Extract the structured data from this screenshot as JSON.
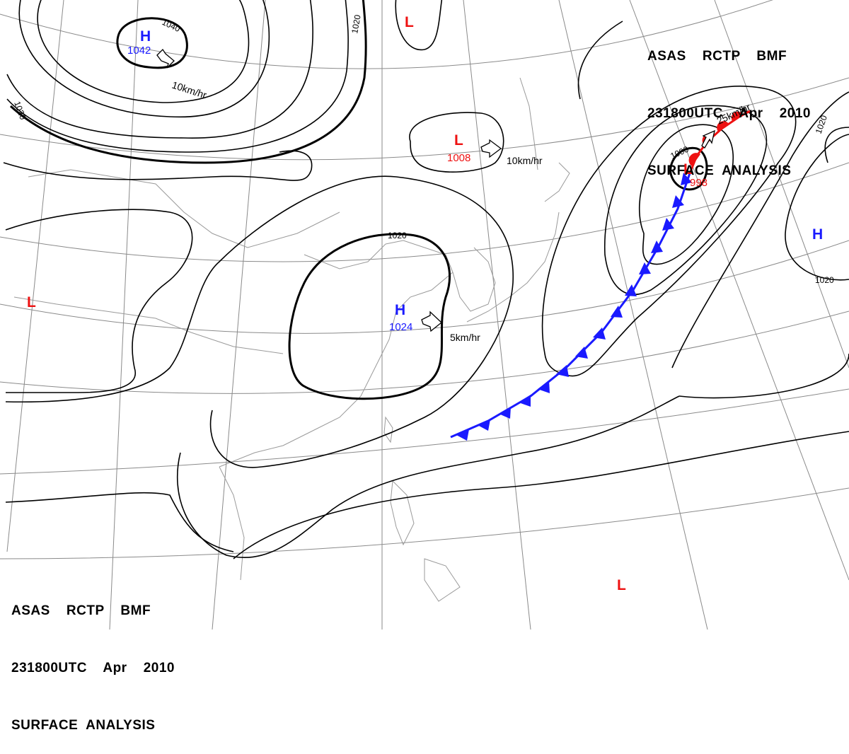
{
  "header_top_right": {
    "line1": "ASAS    RCTP    BMF",
    "line2": "231800UTC    Apr    2010",
    "line3": "SURFACE  ANALYSIS"
  },
  "header_bottom_left": {
    "line1": "ASAS    RCTP    BMF",
    "line2": "231800UTC    Apr    2010",
    "line3": "SURFACE  ANALYSIS"
  },
  "pressure_centers": [
    {
      "id": "h-northwest",
      "type": "H",
      "value": "1042",
      "color": "#1a1aff"
    },
    {
      "id": "h-china",
      "type": "H",
      "value": "1024",
      "color": "#1a1aff"
    },
    {
      "id": "h-east",
      "type": "H",
      "value": "",
      "color": "#1a1aff"
    },
    {
      "id": "l-north",
      "type": "L",
      "value": "",
      "color": "#ee1111"
    },
    {
      "id": "l-mongolia",
      "type": "L",
      "value": "1008",
      "color": "#ee1111"
    },
    {
      "id": "l-cyclone",
      "type": "L",
      "value": "998",
      "color": "#ee1111"
    },
    {
      "id": "l-west",
      "type": "L",
      "value": "",
      "color": "#ee1111"
    },
    {
      "id": "l-pacific",
      "type": "L",
      "value": "",
      "color": "#ee1111"
    }
  ],
  "isobar_labels": [
    "1040",
    "1020",
    "1020",
    "1020",
    "1020",
    "1000",
    "1020"
  ],
  "motion_vectors": [
    {
      "id": "motion-h-northwest",
      "speed": "10km/hr"
    },
    {
      "id": "motion-l-mongolia",
      "speed": "10km/hr"
    },
    {
      "id": "motion-h-china",
      "speed": "5km/hr"
    },
    {
      "id": "motion-l-cyclone",
      "speed": "25km/hr"
    }
  ],
  "fronts": [
    {
      "id": "cold-front",
      "type": "cold",
      "color": "#1a1aff"
    },
    {
      "id": "warm-front",
      "type": "warm",
      "color": "#ee1111"
    }
  ],
  "colors": {
    "high": "#1a1aff",
    "low": "#ee1111",
    "isobar": "#000000",
    "grid": "#8a8a8a",
    "coast": "#9a9a9a"
  }
}
